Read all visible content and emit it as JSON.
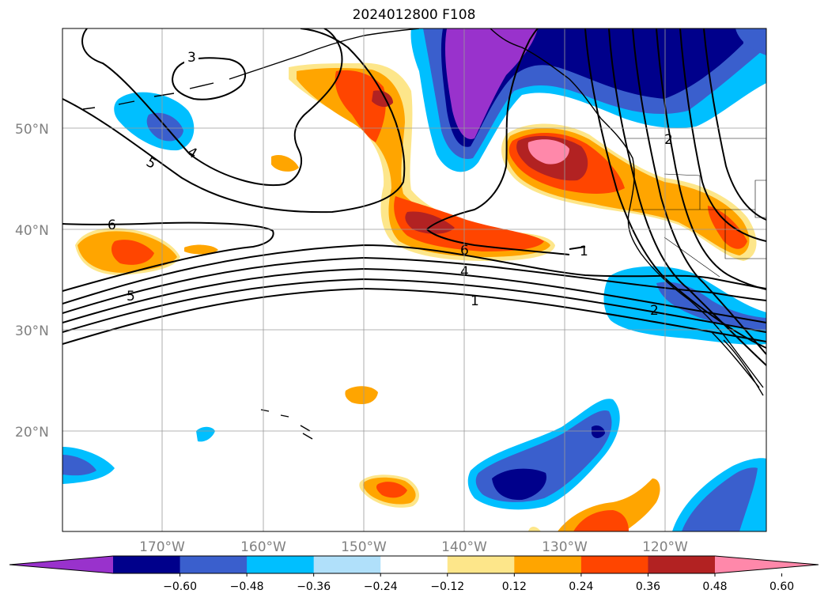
{
  "title": "2024012800 F108",
  "lat_labels": [
    "50°N",
    "40°N",
    "30°N",
    "20°N"
  ],
  "lon_labels": [
    "170°W",
    "160°W",
    "150°W",
    "140°W",
    "130°W",
    "120°W"
  ],
  "colorbar": {
    "colors": [
      "#9932cc",
      "#00008b",
      "#3a5fcd",
      "#00bfff",
      "#b0e0fa",
      "#ffffff",
      "#fde68a",
      "#ffa500",
      "#ff4500",
      "#b22222",
      "#ff88aa"
    ],
    "tick_labels": [
      "−0.60",
      "−0.48",
      "−0.36",
      "−0.24",
      "−0.12",
      "0.12",
      "0.24",
      "0.36",
      "0.48",
      "0.60"
    ],
    "extend": "both"
  },
  "contour_labels": [
    "3",
    "4",
    "5",
    "6",
    "5",
    "6",
    "4",
    "1",
    "2",
    "2",
    "1"
  ]
}
